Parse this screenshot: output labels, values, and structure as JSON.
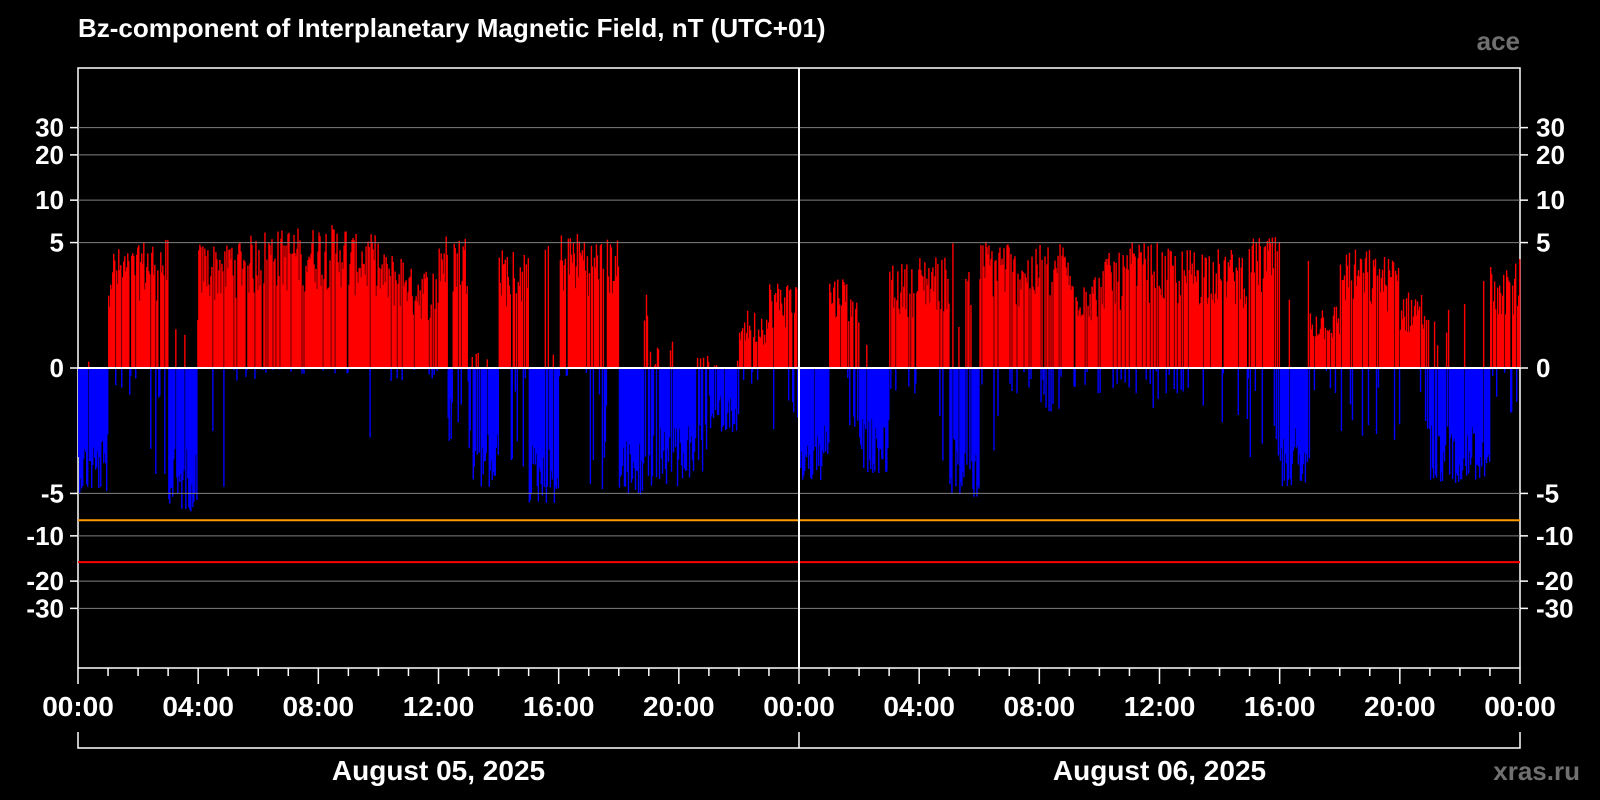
{
  "chart_data": {
    "type": "bar",
    "title": "Bz-component of Interplanetary Magnetic Field, nT (UTC+01)",
    "source_label": "ace",
    "watermark": "xras.ru",
    "y_tick_labels": [
      "30",
      "20",
      "10",
      "5",
      "0",
      "-5",
      "-10",
      "-20",
      "-30"
    ],
    "x_tick_labels": [
      "00:00",
      "04:00",
      "08:00",
      "12:00",
      "16:00",
      "20:00",
      "00:00",
      "04:00",
      "08:00",
      "12:00",
      "16:00",
      "20:00",
      "00:00"
    ],
    "day_labels": [
      "August 05, 2025",
      "August 06, 2025"
    ],
    "x_range_hours": [
      0,
      48
    ],
    "threshold_lines": [
      {
        "value": -7.8,
        "color": "#ff9900"
      },
      {
        "value": -15,
        "color": "#ff0000"
      }
    ],
    "colors": {
      "positive": "#ff0000",
      "negative": "#0000ff",
      "background": "#000000",
      "grid": "#808080",
      "text": "#ffffff",
      "source_label": "#707070"
    },
    "series_hourly": {
      "hour_start": [
        0,
        1,
        2,
        3,
        4,
        5,
        6,
        7,
        8,
        9,
        10,
        11,
        12,
        13,
        14,
        15,
        16,
        17,
        18,
        19,
        20,
        21,
        22,
        23,
        24,
        25,
        26,
        27,
        28,
        29,
        30,
        31,
        32,
        33,
        34,
        35,
        36,
        37,
        38,
        39,
        40,
        41,
        42,
        43,
        44,
        45,
        46,
        47
      ],
      "max": [
        0.2,
        4.6,
        5.3,
        1.5,
        5.0,
        5.7,
        6.3,
        6.5,
        6.8,
        5.8,
        4.2,
        3.2,
        5.8,
        0.3,
        4.5,
        5.8,
        6.0,
        5.4,
        3.5,
        0.5,
        0.2,
        0.2,
        1.3,
        2.5,
        0.2,
        2.8,
        2.8,
        3.5,
        4.0,
        5.0,
        5.3,
        4.5,
        5.0,
        3.0,
        4.2,
        5.0,
        4.5,
        4.6,
        4.5,
        5.5,
        4.2,
        1.5,
        4.5,
        4.0,
        2.0,
        1.5,
        3.3,
        3.8
      ],
      "min": [
        -5.0,
        -0.5,
        -4.0,
        -6.8,
        -4.5,
        -0.2,
        -0.1,
        -0.1,
        -0.1,
        -5.5,
        -0.3,
        -0.2,
        -2.0,
        -4.8,
        -3.5,
        -6.0,
        -0.2,
        -5.0,
        -5.5,
        -4.5,
        -4.0,
        -1.5,
        -0.3,
        -2.0,
        -4.2,
        -1.5,
        -3.5,
        -0.5,
        -3.2,
        -5.5,
        -3.0,
        -0.5,
        -1.0,
        -0.5,
        -0.5,
        -0.8,
        -0.5,
        -1.5,
        -1.2,
        -3.5,
        -4.5,
        -0.5,
        -1.8,
        -2.5,
        -1.5,
        -4.2,
        -4.0,
        -1.2
      ]
    }
  }
}
